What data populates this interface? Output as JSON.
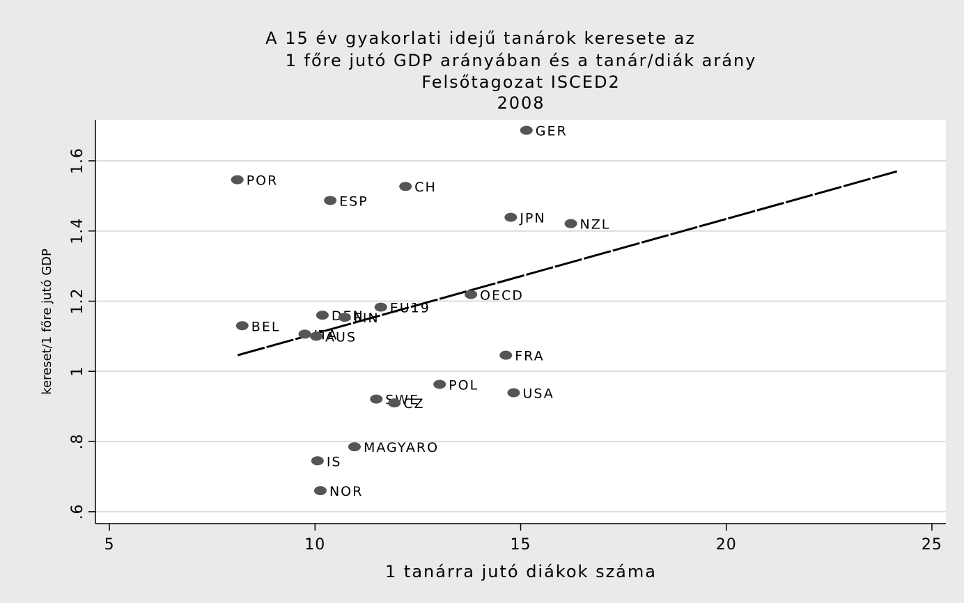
{
  "chart_data": {
    "type": "scatter",
    "title": [
      "A 15 év gyakorlati idejű tanárok keresete az",
      "1 főre jutó GDP arányában és a tanár/diák arány",
      "Felsőtagozat ISCED2",
      "2008"
    ],
    "x_label": "1 tanárra jutó diákok száma",
    "y_label": "kereset/1 főre jutó GDP",
    "labels": [
      "GER",
      "POR",
      "ESP",
      "CH",
      "JPN",
      "NZL",
      "OECD",
      "EU19",
      "DEN",
      "FIN",
      "BEL",
      "ITA",
      "AUS",
      "FRA",
      "POL",
      "USA",
      "SWE",
      "CZ",
      "MAGYARO",
      "IS",
      "NOR"
    ],
    "x": [
      15.14,
      8.11,
      10.37,
      12.2,
      14.76,
      16.22,
      13.79,
      11.6,
      10.18,
      10.72,
      8.23,
      9.75,
      10.03,
      14.64,
      13.03,
      14.83,
      11.49,
      11.93,
      10.96,
      10.06,
      10.13
    ],
    "values": [
      1.687,
      1.546,
      1.487,
      1.527,
      1.439,
      1.421,
      1.219,
      1.183,
      1.16,
      1.154,
      1.13,
      1.106,
      1.1,
      1.046,
      0.963,
      0.939,
      0.921,
      0.91,
      0.785,
      0.745,
      0.66
    ],
    "color": "#555555",
    "fit": {
      "x": [
        8.12,
        24.15
      ],
      "values": [
        1.046,
        1.57
      ],
      "color": "#000000"
    },
    "xlim": [
      4.66,
      25.34
    ],
    "ylim": [
      0.566,
      1.717
    ],
    "xticks": [
      5,
      10,
      15,
      20,
      25
    ],
    "yticks": [
      {
        "value": 0.6,
        "label": ".6"
      },
      {
        "value": 0.8,
        "label": ".8"
      },
      1,
      1.2,
      1.4,
      1.6
    ],
    "grid": true
  }
}
